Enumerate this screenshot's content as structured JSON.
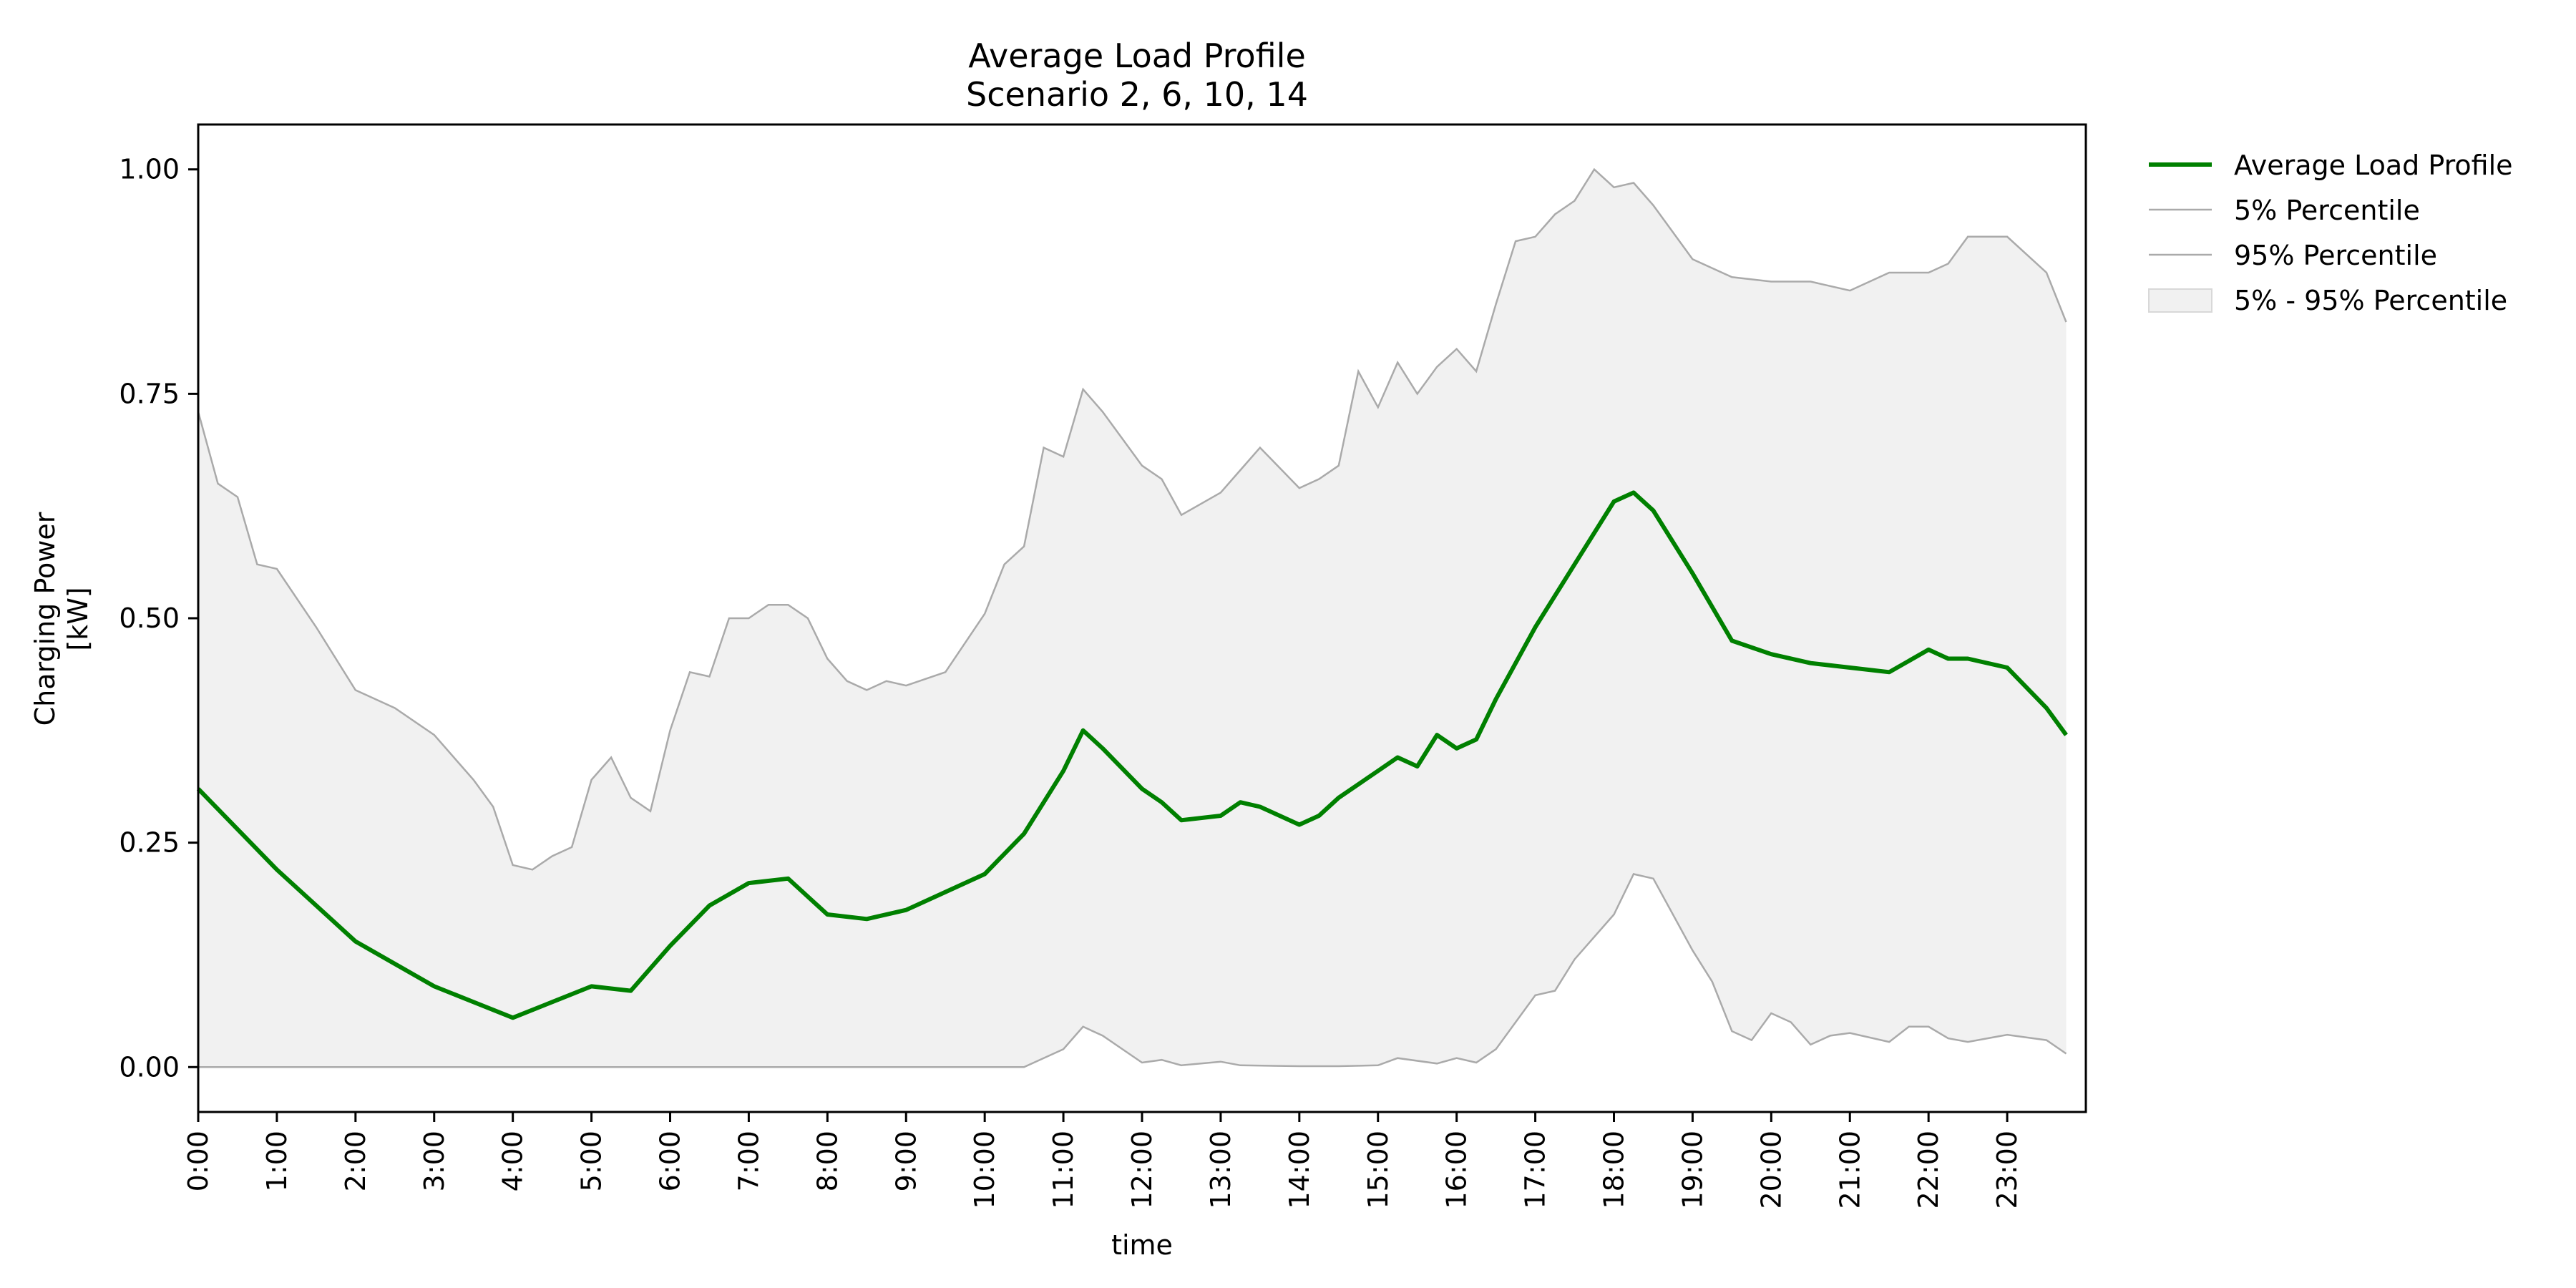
{
  "chart_data": {
    "type": "line",
    "title": "Average Load Profile",
    "subtitle": "Scenario 2, 6, 10, 14",
    "xlabel": "time",
    "ylabel": "Charging Power",
    "ylabel_unit": "[kW]",
    "x_ticks": [
      "0:00",
      "1:00",
      "2:00",
      "3:00",
      "4:00",
      "5:00",
      "6:00",
      "7:00",
      "8:00",
      "9:00",
      "10:00",
      "11:00",
      "12:00",
      "13:00",
      "14:00",
      "15:00",
      "16:00",
      "17:00",
      "18:00",
      "19:00",
      "20:00",
      "21:00",
      "22:00",
      "23:00"
    ],
    "y_ticks": [
      "0.00",
      "0.25",
      "0.50",
      "0.75",
      "1.00"
    ],
    "y_tick_values": [
      0,
      0.25,
      0.5,
      0.75,
      1.0
    ],
    "xlim": [
      0,
      24
    ],
    "ylim": [
      -0.05,
      1.05
    ],
    "grid": false,
    "legend_position": "outside-right-top",
    "colors": {
      "mean": "#008000",
      "percentile_lines": "#aaaaaa",
      "band": "#f1f1f1"
    },
    "legend": [
      "Average Load Profile",
      "5% Percentile",
      "95% Percentile",
      "5% - 95% Percentile"
    ],
    "series": [
      {
        "name": "Average Load Profile",
        "x": [
          0,
          1,
          2,
          3,
          4,
          5,
          5.5,
          6,
          6.5,
          7,
          7.5,
          8,
          8.5,
          9,
          9.5,
          10,
          10.5,
          11,
          11.25,
          11.5,
          12,
          12.25,
          12.5,
          13,
          13.25,
          13.5,
          14,
          14.25,
          14.5,
          15,
          15.25,
          15.5,
          15.75,
          16,
          16.25,
          16.5,
          17,
          17.5,
          18,
          18.25,
          18.5,
          19,
          19.5,
          20,
          20.5,
          21,
          21.5,
          22,
          22.25,
          22.5,
          23,
          23.5,
          23.75
        ],
        "y": [
          0.31,
          0.22,
          0.14,
          0.09,
          0.055,
          0.09,
          0.085,
          0.135,
          0.18,
          0.205,
          0.21,
          0.17,
          0.165,
          0.175,
          0.195,
          0.215,
          0.26,
          0.33,
          0.375,
          0.355,
          0.31,
          0.295,
          0.275,
          0.28,
          0.295,
          0.29,
          0.27,
          0.28,
          0.3,
          0.33,
          0.345,
          0.335,
          0.37,
          0.355,
          0.365,
          0.41,
          0.49,
          0.56,
          0.63,
          0.64,
          0.62,
          0.55,
          0.475,
          0.46,
          0.45,
          0.445,
          0.44,
          0.465,
          0.455,
          0.455,
          0.445,
          0.4,
          0.37
        ]
      },
      {
        "name": "5% Percentile",
        "x": [
          0,
          10.5,
          11,
          11.25,
          11.5,
          12,
          12.25,
          12.5,
          13,
          13.25,
          14,
          14.5,
          15,
          15.25,
          15.75,
          16,
          16.25,
          16.5,
          17,
          17.25,
          17.5,
          18,
          18.25,
          18.5,
          19,
          19.25,
          19.5,
          19.75,
          20,
          20.25,
          20.5,
          20.75,
          21,
          21.5,
          21.75,
          22,
          22.25,
          22.5,
          23,
          23.5,
          23.75
        ],
        "y": [
          0,
          0,
          0.02,
          0.045,
          0.035,
          0.005,
          0.008,
          0.002,
          0.006,
          0.002,
          0.001,
          0.001,
          0.002,
          0.01,
          0.004,
          0.01,
          0.005,
          0.02,
          0.08,
          0.085,
          0.12,
          0.17,
          0.215,
          0.21,
          0.13,
          0.095,
          0.04,
          0.03,
          0.06,
          0.05,
          0.025,
          0.035,
          0.038,
          0.028,
          0.045,
          0.045,
          0.032,
          0.028,
          0.036,
          0.03,
          0.015
        ]
      },
      {
        "name": "95% Percentile",
        "x": [
          0,
          0.25,
          0.5,
          0.75,
          1,
          1.5,
          2,
          2.5,
          3,
          3.5,
          3.75,
          4,
          4.25,
          4.5,
          4.75,
          5,
          5.25,
          5.5,
          5.75,
          6,
          6.25,
          6.5,
          6.75,
          7,
          7.25,
          7.5,
          7.75,
          8,
          8.25,
          8.5,
          8.75,
          9,
          9.5,
          10,
          10.25,
          10.5,
          10.75,
          11,
          11.25,
          11.5,
          12,
          12.25,
          12.5,
          13,
          13.25,
          13.5,
          14,
          14.25,
          14.5,
          14.75,
          15,
          15.25,
          15.5,
          15.75,
          16,
          16.25,
          16.5,
          16.75,
          17,
          17.25,
          17.5,
          17.75,
          18,
          18.25,
          18.5,
          19,
          19.5,
          20,
          20.5,
          21,
          21.5,
          22,
          22.25,
          22.5,
          23,
          23.5,
          23.75
        ],
        "y": [
          0.73,
          0.65,
          0.635,
          0.56,
          0.555,
          0.49,
          0.42,
          0.4,
          0.37,
          0.32,
          0.29,
          0.225,
          0.22,
          0.235,
          0.245,
          0.32,
          0.345,
          0.3,
          0.285,
          0.375,
          0.44,
          0.435,
          0.5,
          0.5,
          0.515,
          0.515,
          0.5,
          0.455,
          0.43,
          0.42,
          0.43,
          0.425,
          0.44,
          0.505,
          0.56,
          0.58,
          0.69,
          0.68,
          0.755,
          0.73,
          0.67,
          0.655,
          0.615,
          0.64,
          0.665,
          0.69,
          0.645,
          0.655,
          0.67,
          0.775,
          0.735,
          0.785,
          0.75,
          0.78,
          0.8,
          0.775,
          0.85,
          0.92,
          0.925,
          0.95,
          0.965,
          1.0,
          0.98,
          0.985,
          0.96,
          0.9,
          0.88,
          0.875,
          0.875,
          0.865,
          0.885,
          0.885,
          0.895,
          0.925,
          0.925,
          0.885,
          0.83
        ]
      }
    ]
  }
}
